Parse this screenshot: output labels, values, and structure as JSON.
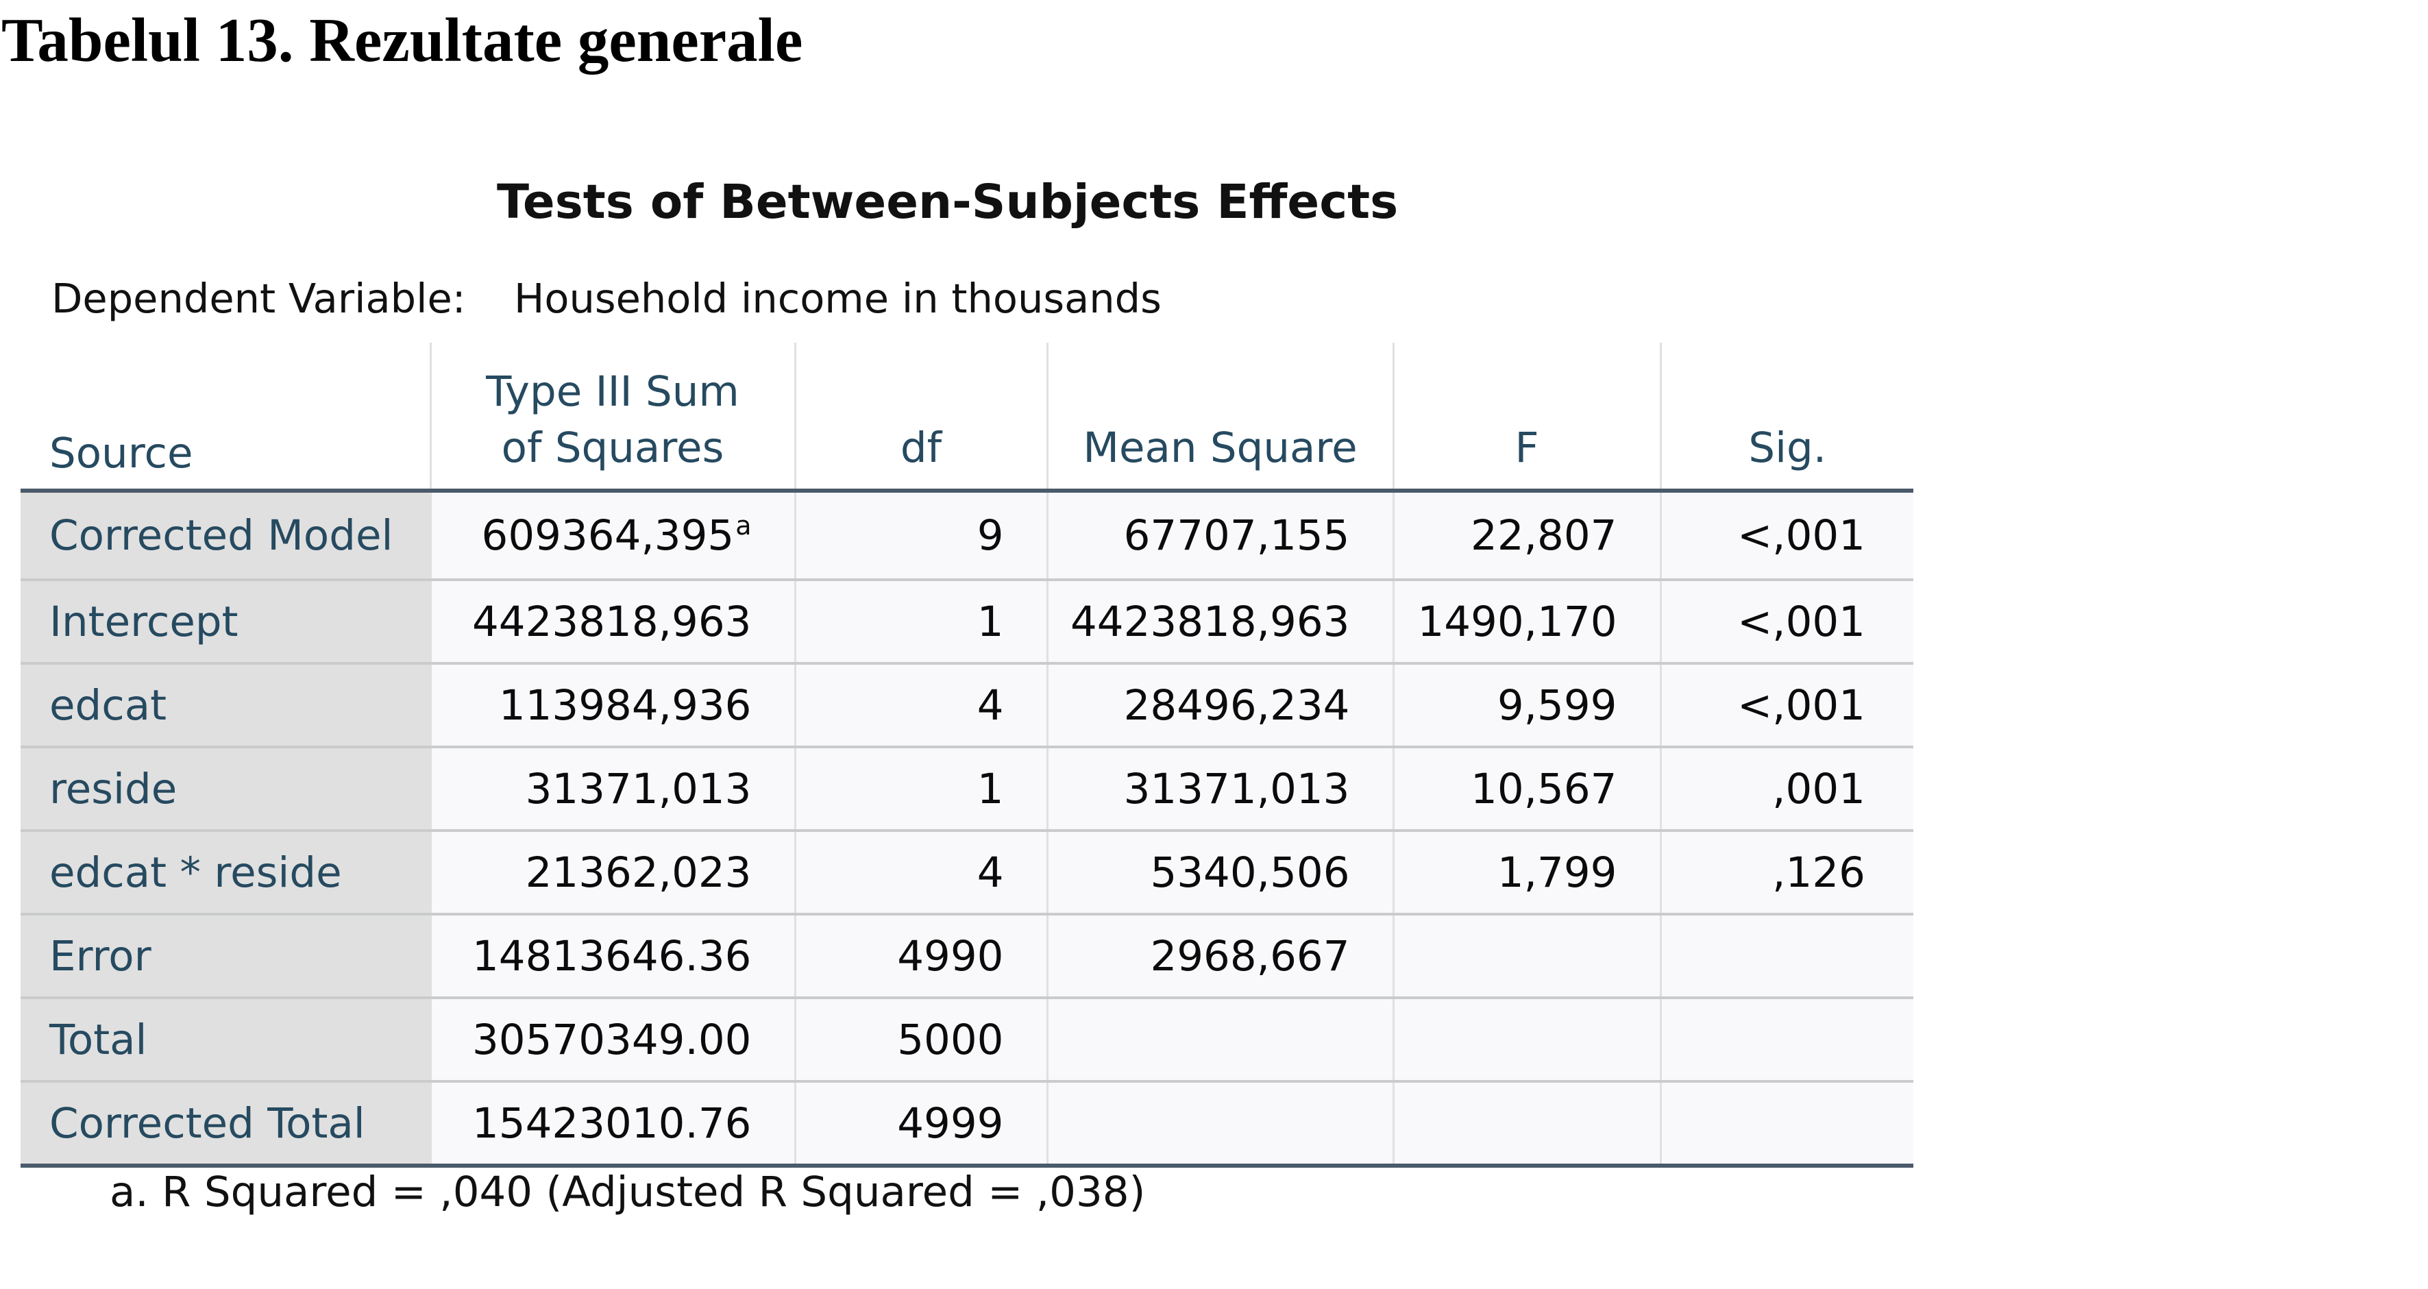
{
  "document": {
    "title": "Tabelul 13. Rezultate generale"
  },
  "table": {
    "title": "Tests of Between-Subjects Effects",
    "dependent_variable_label": "Dependent Variable:",
    "dependent_variable_value": "Household income in thousands",
    "columns": {
      "source": "Source",
      "sum_of_squares_line1": "Type III Sum",
      "sum_of_squares_line2": "of Squares",
      "df": "df",
      "mean_square": "Mean Square",
      "f": "F",
      "sig": "Sig."
    },
    "rows": [
      {
        "source": "Corrected Model",
        "ss": "609364,395",
        "ss_note": "a",
        "df": "9",
        "ms": "67707,155",
        "f": "22,807",
        "sig": "<,001"
      },
      {
        "source": "Intercept",
        "ss": "4423818,963",
        "ss_note": "",
        "df": "1",
        "ms": "4423818,963",
        "f": "1490,170",
        "sig": "<,001"
      },
      {
        "source": "edcat",
        "ss": "113984,936",
        "ss_note": "",
        "df": "4",
        "ms": "28496,234",
        "f": "9,599",
        "sig": "<,001"
      },
      {
        "source": "reside",
        "ss": "31371,013",
        "ss_note": "",
        "df": "1",
        "ms": "31371,013",
        "f": "10,567",
        "sig": ",001"
      },
      {
        "source": "edcat * reside",
        "ss": "21362,023",
        "ss_note": "",
        "df": "4",
        "ms": "5340,506",
        "f": "1,799",
        "sig": ",126"
      },
      {
        "source": "Error",
        "ss": "14813646.36",
        "ss_note": "",
        "df": "4990",
        "ms": "2968,667",
        "f": "",
        "sig": ""
      },
      {
        "source": "Total",
        "ss": "30570349.00",
        "ss_note": "",
        "df": "5000",
        "ms": "",
        "f": "",
        "sig": ""
      },
      {
        "source": "Corrected Total",
        "ss": "15423010.76",
        "ss_note": "",
        "df": "4999",
        "ms": "",
        "f": "",
        "sig": ""
      }
    ],
    "footnote": "a. R Squared = ,040 (Adjusted R Squared = ,038)"
  }
}
